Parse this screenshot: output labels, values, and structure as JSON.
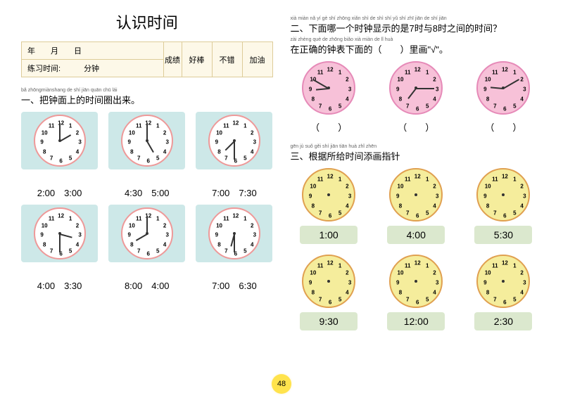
{
  "title": "认识时间",
  "info": {
    "date_labels": [
      "年",
      "月",
      "日"
    ],
    "practice": "练习时间:",
    "practice_unit": "分钟",
    "score_label": "成绩",
    "ratings": [
      "好棒",
      "不错",
      "加油"
    ]
  },
  "section1": {
    "pinyin": "bǎ zhōngmiànshang de shí jiān quān chū lái",
    "text": "一、把钟面上的时间圈出来。"
  },
  "section2": {
    "pinyin": "xià miàn nǎ yí gè shí zhōng xiǎn shì de shì  shí yǔ  shí zhī jiān de shí jiān",
    "text": "二、下面哪一个时钟显示的是7时与8时之间的时间？",
    "sub_pinyin": "zài zhèng què de zhōng biǎo xià miàn de         lǐ huà",
    "sub": "在正确的钟表下面的（　　）里画\"√\"。"
  },
  "section3": {
    "pinyin": "gēn jù suǒ gěi shí jiān tiān huà zhǐ zhēn",
    "text": "三、根据所给时间添画指针"
  },
  "clocks1": [
    {
      "h": 2,
      "m": 0,
      "opts": "2:00　3:00"
    },
    {
      "h": 5,
      "m": 0,
      "opts": "4:30　5:00"
    },
    {
      "h": 7,
      "m": 30,
      "opts": "7:00　7:30"
    },
    {
      "h": 3,
      "m": 30,
      "opts": "4:00　3:30"
    },
    {
      "h": 8,
      "m": 0,
      "opts": "8:00　4:00"
    },
    {
      "h": 6,
      "m": 30,
      "opts": "7:00　6:30"
    }
  ],
  "clocks2": [
    {
      "h": 8,
      "m": 50
    },
    {
      "h": 7,
      "m": 15
    },
    {
      "h": 9,
      "m": 10
    }
  ],
  "paren": "（　　）",
  "clocks3": [
    {
      "label": "1:00"
    },
    {
      "label": "4:00"
    },
    {
      "label": "5:30"
    },
    {
      "label": "9:30"
    },
    {
      "label": "12:00"
    },
    {
      "label": "2:30"
    }
  ],
  "page_num": "48",
  "clock_numbers": [
    12,
    1,
    2,
    3,
    4,
    5,
    6,
    7,
    8,
    9,
    10,
    11
  ]
}
